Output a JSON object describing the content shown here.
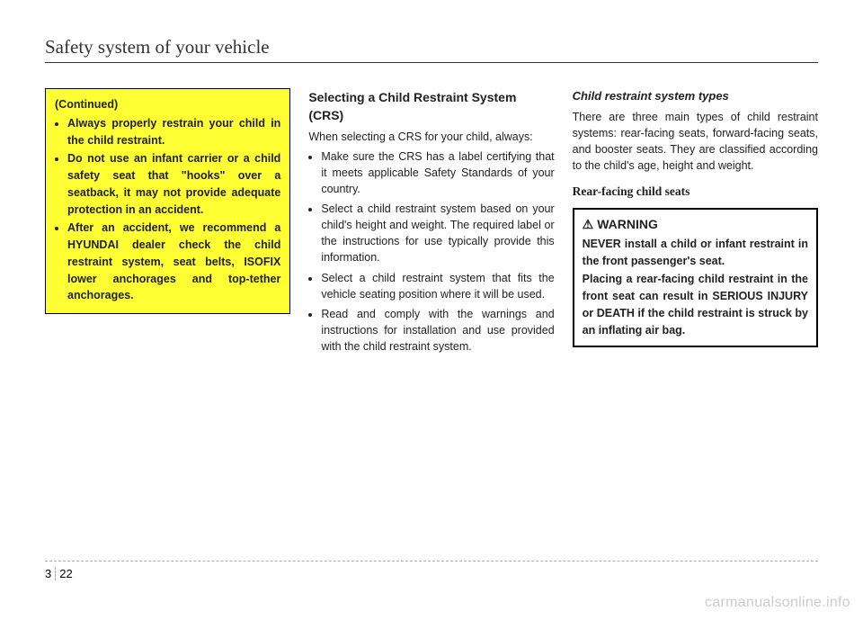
{
  "header": "Safety system of your vehicle",
  "col1": {
    "box": {
      "continued": "(Continued)",
      "items": [
        "Always properly restrain your child in the child restraint.",
        "Do not use an infant carrier or a child safety seat that \"hooks\" over a seatback, it may not provide adequate protection in an accident.",
        "After an accident, we recommend a HYUNDAI dealer check the child restraint system, seat belts, ISOFIX lower anchorages and top-tether anchorages."
      ]
    }
  },
  "col2": {
    "title": "Selecting a Child Restraint System  (CRS)",
    "lead": "When selecting a CRS for your child, always:",
    "bullets": [
      "Make sure the CRS has a label certifying that it meets applicable Safety Standards of your country.",
      "Select a child restraint system based on your child's height and weight. The required label or the instructions for use typically provide this information.",
      "Select a child restraint system that fits the vehicle seating position where it will be used.",
      "Read and comply with the warnings and instructions for installation and use provided with the child restraint system."
    ]
  },
  "col3": {
    "subhead": "Child restraint system types",
    "body": "There are three main types of child restraint systems: rear-facing seats, forward-facing seats, and booster seats. They are classified according to the child's age, height and weight.",
    "serif": "Rear-facing child seats",
    "warning": {
      "label": "WARNING",
      "p1": "NEVER install a child or infant restraint in the front passenger's seat.",
      "p2": "Placing a rear-facing child restraint in the front seat can result in SERIOUS INJURY or DEATH if the child restraint is struck by an inflating air bag."
    }
  },
  "footer": {
    "chapter": "3",
    "page": "22"
  },
  "watermark": "carmanualsonline.info",
  "colors": {
    "yellow": "#ffff33",
    "text": "#222222",
    "border": "#000000",
    "watermark": "#cccccc"
  }
}
